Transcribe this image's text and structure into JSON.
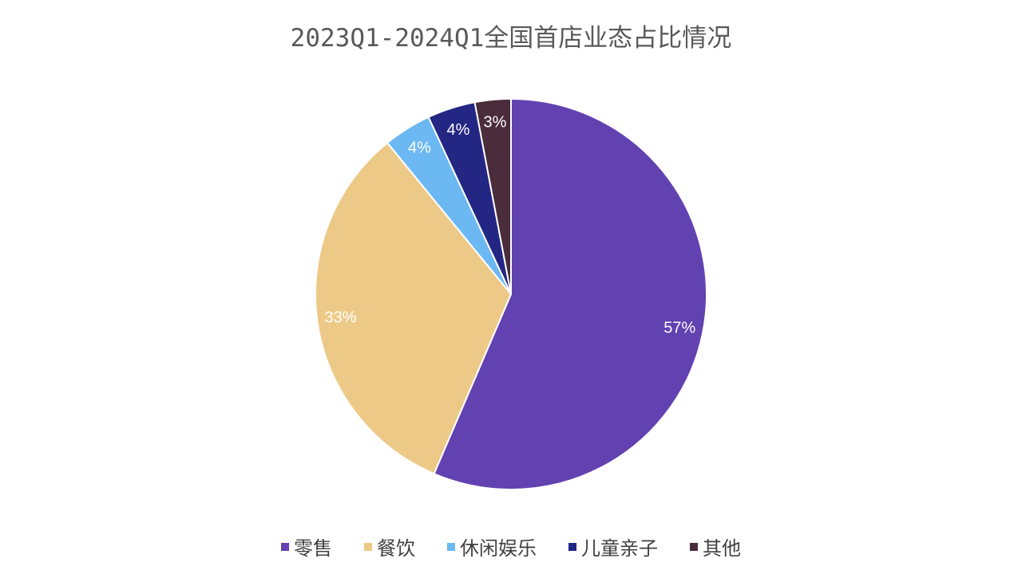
{
  "chart_data": {
    "type": "pie",
    "title": "2023Q1-2024Q1全国首店业态占比情况",
    "categories": [
      "零售",
      "餐饮",
      "休闲娱乐",
      "儿童亲子",
      "其他"
    ],
    "values": [
      57,
      33,
      4,
      4,
      3
    ],
    "labels": [
      "57%",
      "33%",
      "4%",
      "4%",
      "3%"
    ],
    "colors": [
      "#6241B0",
      "#EDC987",
      "#6CB8F2",
      "#232683",
      "#4A2C3B"
    ],
    "start_angle": "12 o'clock",
    "direction": "clockwise",
    "legend_position": "bottom"
  }
}
